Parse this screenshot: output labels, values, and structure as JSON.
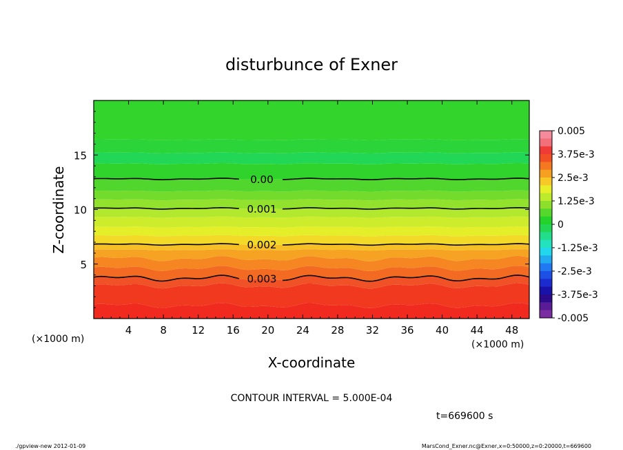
{
  "chart_data": {
    "type": "heatmap",
    "title": "disturbunce of Exner",
    "xlabel": "X-coordinate",
    "ylabel": "Z-coordinate",
    "x_unit_left": "(×1000 m)",
    "x_unit_right": "(×1000 m)",
    "xlim": [
      0,
      50
    ],
    "ylim": [
      0,
      20
    ],
    "x_ticks": [
      4,
      8,
      12,
      16,
      20,
      24,
      28,
      32,
      36,
      40,
      44,
      48
    ],
    "y_ticks": [
      5,
      10,
      15
    ],
    "contour_interval_text": "CONTOUR INTERVAL = 5.000E-04",
    "time_text": "t=669600 s",
    "footer_left": "./gpview-new   2012-01-09",
    "footer_right": "MarsCond_Exner.nc@Exner,x=0:50000,z=0:20000,t=669600",
    "contours": [
      {
        "label": "0.00",
        "z": 12.8,
        "label_x": 17.6
      },
      {
        "label": "0.001",
        "z": 10.1,
        "label_x": 17.6
      },
      {
        "label": "0.002",
        "z": 6.8,
        "label_x": 17.6
      },
      {
        "label": "0.003",
        "z": 3.7,
        "label_x": 17.6
      }
    ],
    "colorbar": {
      "labels": [
        "0.005",
        "3.75e-3",
        "2.5e-3",
        "1.25e-3",
        "0",
        "-1.25e-3",
        "-2.5e-3",
        "-3.75e-3",
        "-0.005"
      ],
      "colors": [
        "#f48a9b",
        "#f2707a",
        "#ef3b36",
        "#f15026",
        "#f37820",
        "#f5a021",
        "#f7c826",
        "#e8ee29",
        "#bcea2d",
        "#8ede2c",
        "#55d72c",
        "#23d22a",
        "#22d552",
        "#22dd8c",
        "#23e2c0",
        "#22d6ec",
        "#23a9f0",
        "#2179f2",
        "#1f50e6",
        "#1c2bd0",
        "#1812a8",
        "#2c0a8c",
        "#5a1c96",
        "#7a2ca0"
      ]
    },
    "field_bands": [
      {
        "z": [
          0,
          1.2
        ],
        "value": 0.0045,
        "color": "#f02a1e"
      },
      {
        "z": [
          1.2,
          3.0
        ],
        "value": 0.0038,
        "color": "#f0391f"
      },
      {
        "z": [
          3.0,
          3.7
        ],
        "value": 0.0032,
        "color": "#f15126"
      },
      {
        "z": [
          3.7,
          4.6
        ],
        "value": 0.0029,
        "color": "#f36a22"
      },
      {
        "z": [
          4.6,
          5.5
        ],
        "value": 0.0026,
        "color": "#f58621"
      },
      {
        "z": [
          5.5,
          6.3
        ],
        "value": 0.0023,
        "color": "#f6a323"
      },
      {
        "z": [
          6.3,
          6.8
        ],
        "value": 0.0021,
        "color": "#f7bf26"
      },
      {
        "z": [
          6.8,
          7.6
        ],
        "value": 0.0018,
        "color": "#f3da28"
      },
      {
        "z": [
          7.6,
          8.4
        ],
        "value": 0.0015,
        "color": "#e4ee29"
      },
      {
        "z": [
          8.4,
          9.3
        ],
        "value": 0.0013,
        "color": "#cdec2b"
      },
      {
        "z": [
          9.3,
          10.1
        ],
        "value": 0.0011,
        "color": "#b2e82d"
      },
      {
        "z": [
          10.1,
          10.9
        ],
        "value": 0.0009,
        "color": "#92e12c"
      },
      {
        "z": [
          10.9,
          11.7
        ],
        "value": 0.0007,
        "color": "#72db2c"
      },
      {
        "z": [
          11.7,
          12.8
        ],
        "value": 0.0004,
        "color": "#50d62c"
      },
      {
        "z": [
          12.8,
          14.2
        ],
        "value": 0.0001,
        "color": "#2fd32c"
      },
      {
        "z": [
          14.2,
          15.2
        ],
        "value": -0.0002,
        "color": "#22d756"
      },
      {
        "z": [
          15.2,
          16.4
        ],
        "value": 0.0,
        "color": "#2bd438"
      },
      {
        "z": [
          16.4,
          20
        ],
        "value": 0.0002,
        "color": "#33d52c"
      }
    ]
  }
}
